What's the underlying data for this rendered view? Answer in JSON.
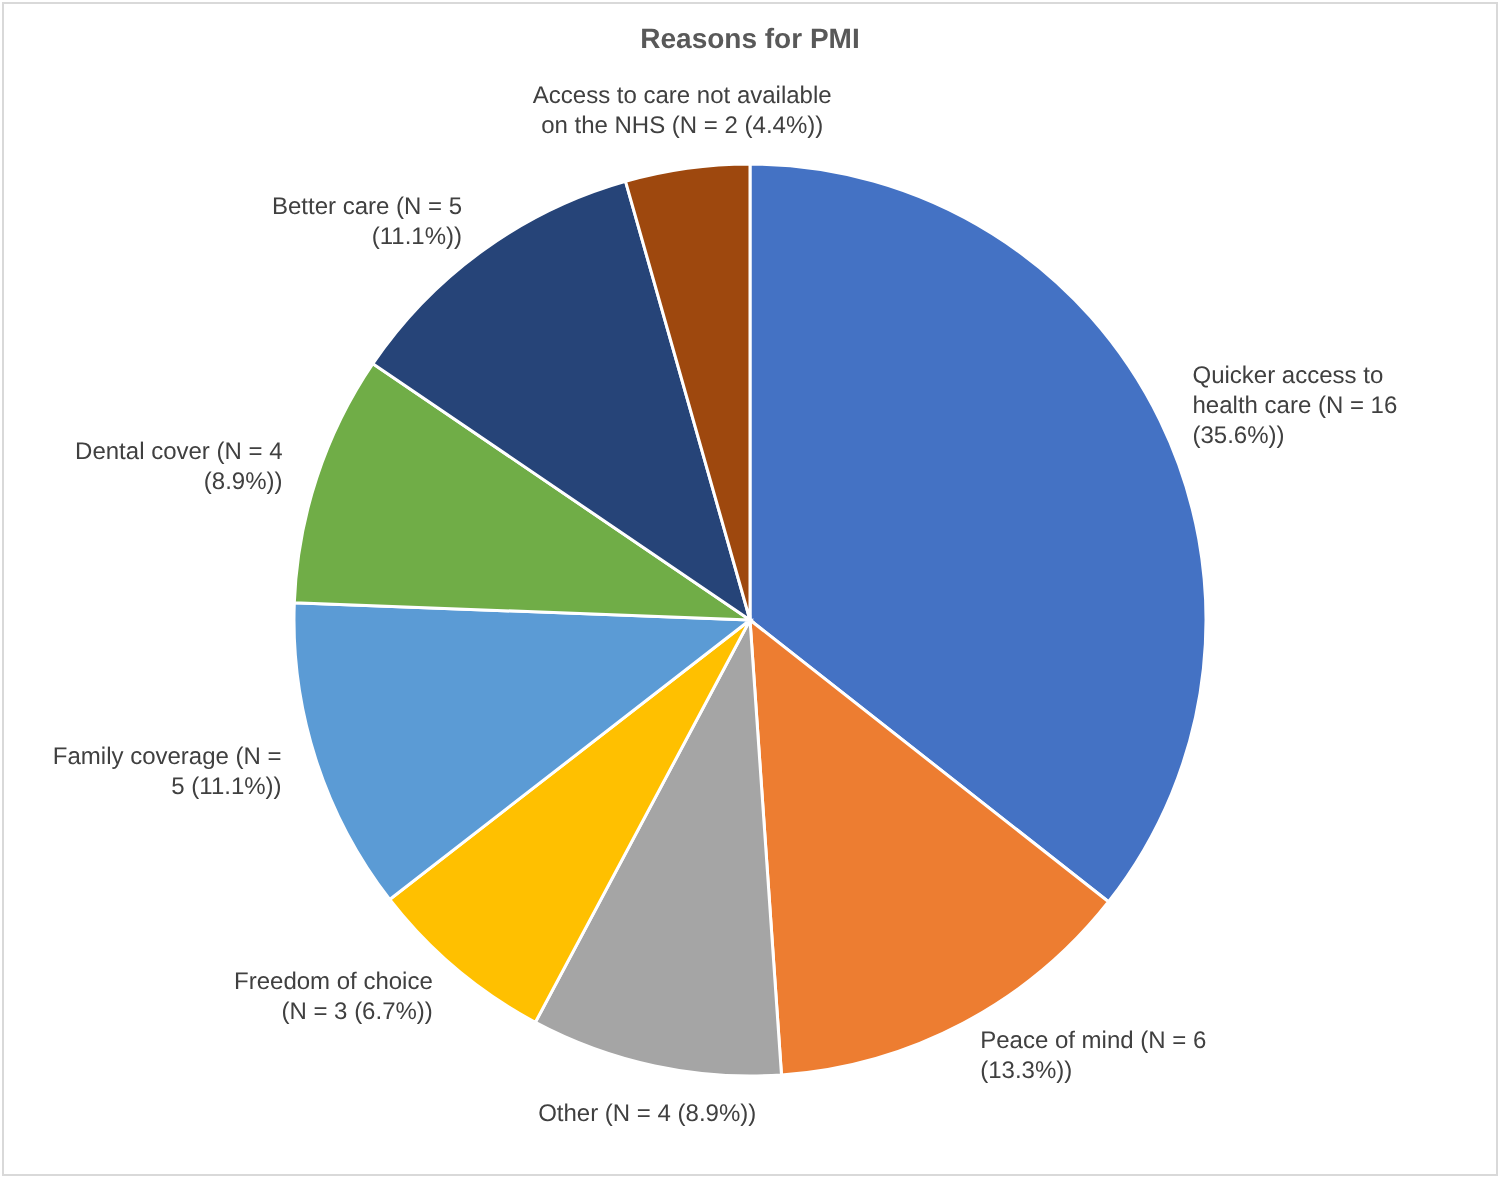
{
  "chart_data": {
    "type": "pie",
    "title": "Reasons for PMI",
    "categories": [
      "Quicker access to health care",
      "Peace of mind",
      "Other",
      "Freedom of choice",
      "Family coverage",
      "Dental cover",
      "Better care",
      "Access to care not available on the NHS"
    ],
    "values": [
      35.6,
      13.3,
      8.9,
      6.7,
      11.1,
      8.9,
      11.1,
      4.4
    ],
    "value_labels": [
      "(N = 16 (35.6%))",
      "(N = 6 (13.3%))",
      "(N = 4 (8.9%))",
      "(N = 3 (6.7%))",
      "(N = 5 (11.1%))",
      "(N = 4 (8.9%))",
      "(N = 5 (11.1%))",
      "(N = 2 (4.4%))"
    ],
    "colors": [
      "#4472c4",
      "#ed7d31",
      "#a5a5a5",
      "#ffc000",
      "#5b9bd5",
      "#70ad47",
      "#264478",
      "#9e480e"
    ],
    "legend": false
  }
}
